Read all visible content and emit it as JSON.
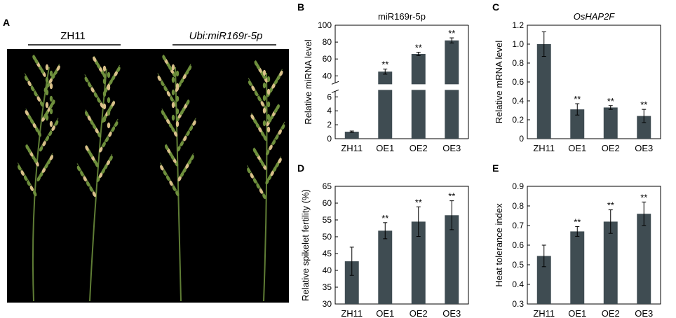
{
  "figure": {
    "panels": [
      "A",
      "B",
      "C",
      "D",
      "E"
    ]
  },
  "photo": {
    "group_left": "ZH11",
    "group_right": "Ubi:miR169r-5p",
    "background_color": "#000000"
  },
  "colors": {
    "bar": "#3f4c52",
    "axis": "#000000",
    "panicle_green": "#6e8f3c",
    "panicle_tan": "#d9c08a"
  },
  "chart_data": [
    {
      "panel": "B",
      "type": "bar",
      "title": "miR169r-5p",
      "ylabel": "Relative miRNA level",
      "categories": [
        "ZH11",
        "OE1",
        "OE2",
        "OE3"
      ],
      "values": [
        1.0,
        45,
        66,
        82
      ],
      "errors": [
        0.1,
        3,
        2,
        3
      ],
      "significance": [
        "",
        "**",
        "**",
        "**"
      ],
      "broken_axis": true,
      "lower_range": [
        0,
        7
      ],
      "upper_range": [
        30,
        100
      ],
      "yticks_lower": [
        0,
        2,
        4,
        6
      ],
      "yticks_upper": [
        40,
        60,
        80,
        100
      ]
    },
    {
      "panel": "C",
      "type": "bar",
      "title": "OsHAP2F",
      "title_italic": true,
      "ylabel": "Relative mRNA level",
      "categories": [
        "ZH11",
        "OE1",
        "OE2",
        "OE3"
      ],
      "values": [
        1.0,
        0.31,
        0.33,
        0.24
      ],
      "errors": [
        0.13,
        0.06,
        0.02,
        0.07
      ],
      "significance": [
        "",
        "**",
        "**",
        "**"
      ],
      "ylim": [
        0,
        1.2
      ],
      "yticks": [
        "0",
        "0.2",
        "0.4",
        "0.6",
        "0.8",
        "1.0",
        "1.2"
      ]
    },
    {
      "panel": "D",
      "type": "bar",
      "title": "",
      "ylabel": "Relative spikelet fertility (%)",
      "categories": [
        "ZH11",
        "OE1",
        "OE2",
        "OE3"
      ],
      "values": [
        42.7,
        51.8,
        54.5,
        56.4
      ],
      "errors": [
        4.2,
        2.4,
        4.4,
        4.3
      ],
      "significance": [
        "",
        "**",
        "**",
        "**"
      ],
      "ylim": [
        30,
        65
      ],
      "yticks": [
        "30",
        "35",
        "40",
        "45",
        "50",
        "55",
        "60",
        "65"
      ]
    },
    {
      "panel": "E",
      "type": "bar",
      "title": "",
      "ylabel": "Heat tolerance index",
      "categories": [
        "ZH11",
        "OE1",
        "OE2",
        "OE3"
      ],
      "values": [
        0.545,
        0.67,
        0.72,
        0.76
      ],
      "errors": [
        0.055,
        0.025,
        0.06,
        0.06
      ],
      "significance": [
        "",
        "**",
        "**",
        "**"
      ],
      "ylim": [
        0.3,
        0.9
      ],
      "yticks": [
        "0.3",
        "0.4",
        "0.5",
        "0.6",
        "0.7",
        "0.8",
        "0.9"
      ]
    }
  ]
}
